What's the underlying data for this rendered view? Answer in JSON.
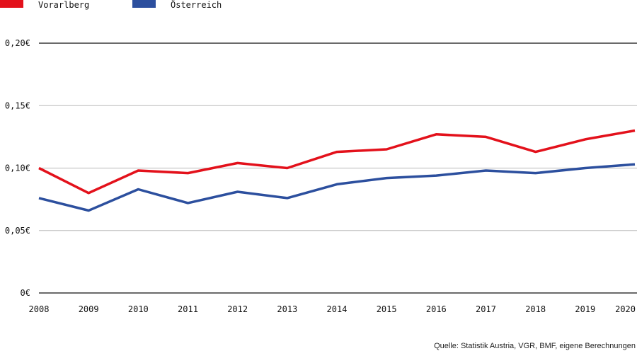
{
  "chart_data": {
    "type": "line",
    "title": "",
    "xlabel": "",
    "ylabel": "",
    "x": [
      "2008",
      "2009",
      "2010",
      "2011",
      "2012",
      "2013",
      "2014",
      "2015",
      "2016",
      "2017",
      "2018",
      "2019",
      "2020"
    ],
    "series": [
      {
        "name": "Vorarlberg",
        "color": "#e3111b",
        "values": [
          0.1,
          0.08,
          0.098,
          0.096,
          0.104,
          0.1,
          0.113,
          0.115,
          0.127,
          0.125,
          0.113,
          0.123,
          0.13
        ]
      },
      {
        "name": "Österreich",
        "color": "#2c4f9e",
        "values": [
          0.076,
          0.066,
          0.083,
          0.072,
          0.081,
          0.076,
          0.087,
          0.092,
          0.094,
          0.098,
          0.096,
          0.1,
          0.103
        ]
      }
    ],
    "ylim": [
      0,
      0.2
    ],
    "yticks": [
      {
        "value": 0.0,
        "label": "0€"
      },
      {
        "value": 0.05,
        "label": "0,05€"
      },
      {
        "value": 0.1,
        "label": "0,10€"
      },
      {
        "value": 0.15,
        "label": "0,15€"
      },
      {
        "value": 0.2,
        "label": "0,20€"
      }
    ],
    "grid": true,
    "legend_position": "top-left",
    "source": "Quelle: Statistik Austria, VGR, BMF, eigene Berechnungen"
  }
}
